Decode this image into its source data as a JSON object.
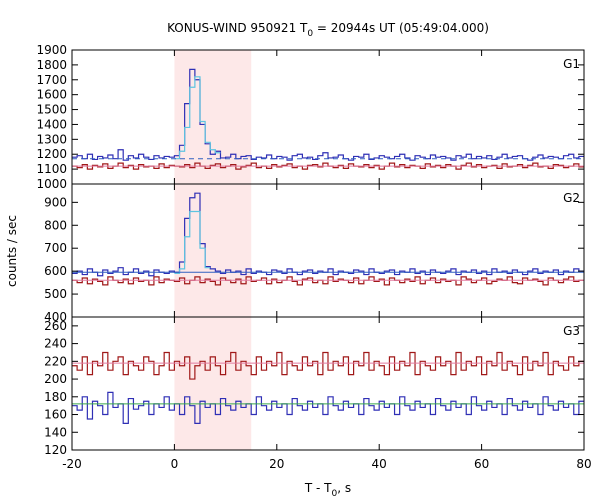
{
  "chart_data": {
    "type": "line",
    "title": {
      "prefix": "KONUS-WIND 950921 T",
      "sub": "0",
      "suffix": " = 20944s UT (05:49:04.000)"
    },
    "xlabel": {
      "prefix": "T - T",
      "sub": "0",
      "suffix": ", s"
    },
    "ylabel": "counts / sec",
    "xlim": [
      -20,
      80
    ],
    "xticks": [
      -20,
      0,
      20,
      40,
      60,
      80
    ],
    "highlight_interval": [
      0,
      15
    ],
    "colors": {
      "highlight": "#fde8e8",
      "dark_blue": "#2f2fb5",
      "light_blue": "#5ec4e0",
      "dark_red": "#a01818",
      "background_blue": "#3060c0",
      "background_red": "#e27ba0",
      "background_green": "#3aa84a"
    },
    "panels": [
      {
        "label": "G1",
        "ylim": [
          1000,
          1900
        ],
        "yticks": [
          1000,
          1100,
          1200,
          1300,
          1400,
          1500,
          1600,
          1700,
          1800,
          1900
        ],
        "bin_width": 1,
        "x_start": -20,
        "series": [
          {
            "color_key": "dark_blue",
            "values": [
              1180,
              1190,
              1170,
              1200,
              1165,
              1185,
              1175,
              1195,
              1170,
              1230,
              1160,
              1190,
              1175,
              1200,
              1180,
              1165,
              1190,
              1175,
              1185,
              1180,
              1190,
              1260,
              1540,
              1770,
              1700,
              1400,
              1270,
              1200,
              1220,
              1175,
              1180,
              1200,
              1170,
              1185,
              1190,
              1165,
              1180,
              1175,
              1195,
              1170,
              1185,
              1180,
              1160,
              1190,
              1200,
              1175,
              1180,
              1165,
              1190,
              1210,
              1175,
              1180,
              1195,
              1170,
              1160,
              1185,
              1180,
              1200,
              1165,
              1175,
              1190,
              1180,
              1170,
              1185,
              1200,
              1175,
              1160,
              1190,
              1180,
              1170,
              1195,
              1180,
              1185,
              1175,
              1160,
              1190,
              1180,
              1200,
              1170,
              1185,
              1175,
              1190,
              1165,
              1180,
              1200,
              1175,
              1185,
              1190,
              1170,
              1160,
              1180,
              1195,
              1175,
              1185,
              1180,
              1170,
              1190,
              1200,
              1175,
              1185
            ]
          },
          {
            "color_key": "light_blue",
            "values": [
              null,
              null,
              null,
              null,
              null,
              null,
              null,
              null,
              null,
              null,
              null,
              null,
              null,
              null,
              null,
              null,
              null,
              null,
              null,
              null,
              1170,
              1220,
              1380,
              1650,
              1720,
              1420,
              1280,
              1230,
              1210,
              null,
              null,
              null,
              null,
              null,
              null,
              null,
              null,
              null,
              null,
              null,
              null,
              null,
              null,
              null,
              null,
              null,
              null,
              null,
              null,
              null,
              null,
              null,
              null,
              null,
              null,
              null,
              null,
              null,
              null,
              null,
              null,
              null,
              null,
              null,
              null,
              null,
              null,
              null,
              null,
              null,
              null,
              null,
              null,
              null,
              null,
              null,
              null,
              null,
              null,
              null,
              null,
              null,
              null,
              null,
              null,
              null,
              null,
              null,
              null,
              null,
              null,
              null,
              null,
              null,
              null,
              null,
              null,
              null,
              null,
              null
            ]
          },
          {
            "color_key": "dark_red",
            "values": [
              1120,
              1110,
              1130,
              1100,
              1125,
              1115,
              1135,
              1105,
              1120,
              1140,
              1110,
              1125,
              1100,
              1130,
              1115,
              1120,
              1105,
              1135,
              1110,
              1125,
              1120,
              1115,
              1130,
              1110,
              1140,
              1120,
              1105,
              1125,
              1135,
              1110,
              1120,
              1130,
              1100,
              1115,
              1125,
              1140,
              1110,
              1120,
              1105,
              1130,
              1115,
              1125,
              1135,
              1110,
              1120,
              1100,
              1125,
              1130,
              1115,
              1140,
              1120,
              1110,
              1125,
              1105,
              1135,
              1120,
              1115,
              1130,
              1110,
              1125,
              1100,
              1120,
              1140,
              1115,
              1130,
              1110,
              1125,
              1120,
              1105,
              1135,
              1115,
              1125,
              1110,
              1130,
              1120,
              1100,
              1125,
              1140,
              1115,
              1130,
              1110,
              1120,
              1125,
              1105,
              1135,
              1115,
              1120,
              1130,
              1110,
              1125,
              1140,
              1115,
              1120,
              1105,
              1130,
              1125,
              1110,
              1120,
              1135,
              1115
            ]
          }
        ],
        "fits": [
          {
            "color_key": "background_blue",
            "value": 1170,
            "dashed": true
          },
          {
            "color_key": "background_red",
            "value": 1120,
            "dashed": false
          }
        ]
      },
      {
        "label": "G2",
        "ylim": [
          400,
          980
        ],
        "yticks": [
          400,
          500,
          600,
          700,
          800,
          900
        ],
        "bin_width": 1,
        "x_start": -20,
        "series": [
          {
            "color_key": "dark_blue",
            "values": [
              590,
              600,
              585,
              610,
              595,
              580,
              605,
              590,
              600,
              615,
              585,
              595,
              610,
              590,
              600,
              580,
              605,
              595,
              590,
              600,
              595,
              640,
              830,
              920,
              940,
              720,
              620,
              610,
              600,
              590,
              605,
              595,
              600,
              585,
              610,
              590,
              600,
              595,
              585,
              605,
              600,
              590,
              610,
              595,
              585,
              600,
              605,
              590,
              600,
              595,
              610,
              585,
              600,
              595,
              590,
              605,
              600,
              585,
              610,
              595,
              590,
              600,
              605,
              585,
              600,
              595,
              610,
              590,
              600,
              585,
              605,
              595,
              590,
              600,
              610,
              585,
              600,
              595,
              605,
              590,
              600,
              585,
              610,
              595,
              600,
              590,
              605,
              595,
              585,
              600,
              610,
              590,
              600,
              595,
              605,
              585,
              600,
              595,
              610,
              600
            ]
          },
          {
            "color_key": "light_blue",
            "values": [
              null,
              null,
              null,
              null,
              null,
              null,
              null,
              null,
              null,
              null,
              null,
              null,
              null,
              null,
              null,
              null,
              null,
              null,
              null,
              null,
              590,
              610,
              750,
              860,
              860,
              700,
              615,
              null,
              null,
              null,
              null,
              null,
              null,
              null,
              null,
              null,
              null,
              null,
              null,
              null,
              null,
              null,
              null,
              null,
              null,
              null,
              null,
              null,
              null,
              null,
              null,
              null,
              null,
              null,
              null,
              null,
              null,
              null,
              null,
              null,
              null,
              null,
              null,
              null,
              null,
              null,
              null,
              null,
              null,
              null,
              null,
              null,
              null,
              null,
              null,
              null,
              null,
              null,
              null,
              null,
              null,
              null,
              null,
              null,
              null,
              null,
              null,
              null,
              null,
              null,
              null,
              null,
              null,
              null,
              null,
              null,
              null,
              null,
              null,
              null
            ]
          },
          {
            "color_key": "dark_red",
            "values": [
              560,
              550,
              570,
              545,
              565,
              555,
              540,
              575,
              560,
              550,
              565,
              545,
              570,
              555,
              560,
              540,
              575,
              550,
              565,
              560,
              555,
              570,
              545,
              560,
              575,
              550,
              565,
              555,
              540,
              570,
              560,
              550,
              565,
              545,
              575,
              555,
              560,
              570,
              545,
              565,
              550,
              560,
              575,
              555,
              540,
              565,
              570,
              550,
              560,
              545,
              575,
              555,
              565,
              560,
              550,
              570,
              545,
              560,
              575,
              555,
              565,
              540,
              570,
              560,
              550,
              565,
              555,
              575,
              545,
              560,
              570,
              550,
              565,
              555,
              560,
              540,
              575,
              565,
              550,
              560,
              570,
              545,
              555,
              565,
              560,
              575,
              550,
              545,
              570,
              560,
              565,
              555,
              540,
              570,
              560,
              550,
              565,
              575,
              555,
              560
            ]
          }
        ],
        "fits": [
          {
            "color_key": "background_blue",
            "value": 595,
            "dashed": false
          },
          {
            "color_key": "background_red",
            "value": 560,
            "dashed": false
          }
        ]
      },
      {
        "label": "G3",
        "ylim": [
          120,
          270
        ],
        "yticks": [
          120,
          140,
          160,
          180,
          200,
          220,
          240,
          260
        ],
        "bin_width": 1,
        "x_start": -20,
        "series": [
          {
            "color_key": "dark_blue",
            "values": [
              170,
              165,
              180,
              155,
              175,
              170,
              160,
              185,
              168,
              172,
              150,
              178,
              166,
              170,
              175,
              160,
              172,
              168,
              180,
              165,
              172,
              160,
              180,
              170,
              150,
              175,
              168,
              172,
              160,
              178,
              170,
              165,
              175,
              168,
              172,
              160,
              180,
              170,
              165,
              175,
              168,
              172,
              160,
              178,
              170,
              165,
              175,
              168,
              172,
              160,
              180,
              170,
              165,
              175,
              168,
              172,
              160,
              178,
              170,
              165,
              175,
              168,
              172,
              160,
              180,
              170,
              165,
              175,
              168,
              172,
              160,
              178,
              170,
              165,
              175,
              168,
              172,
              160,
              180,
              170,
              165,
              175,
              168,
              172,
              160,
              178,
              170,
              165,
              175,
              168,
              172,
              160,
              180,
              170,
              165,
              175,
              168,
              172,
              160,
              175
            ]
          },
          {
            "color_key": "dark_red",
            "values": [
              215,
              210,
              225,
              205,
              220,
              215,
              230,
              210,
              220,
              225,
              205,
              220,
              215,
              210,
              225,
              220,
              205,
              215,
              230,
              210,
              220,
              215,
              225,
              200,
              215,
              220,
              210,
              225,
              215,
              205,
              220,
              230,
              210,
              220,
              215,
              205,
              225,
              210,
              220,
              215,
              230,
              205,
              220,
              215,
              210,
              225,
              215,
              220,
              205,
              230,
              210,
              220,
              215,
              225,
              205,
              220,
              215,
              230,
              210,
              220,
              215,
              205,
              225,
              210,
              220,
              215,
              230,
              205,
              220,
              215,
              210,
              225,
              215,
              220,
              205,
              230,
              210,
              220,
              215,
              225,
              205,
              220,
              215,
              230,
              210,
              220,
              215,
              205,
              225,
              210,
              220,
              215,
              230,
              205,
              220,
              215,
              210,
              225,
              215,
              220
            ]
          }
        ],
        "fits": [
          {
            "color_key": "background_red",
            "value": 218,
            "dashed": false
          },
          {
            "color_key": "background_green",
            "value": 172,
            "dashed": false
          }
        ]
      }
    ]
  }
}
